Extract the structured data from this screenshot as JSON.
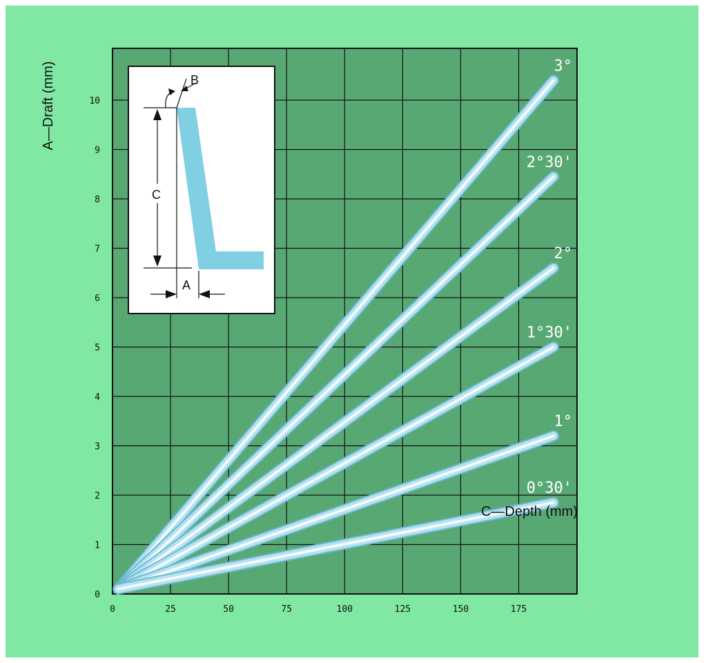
{
  "chart_data": {
    "type": "line",
    "xlabel": "C—Depth (mm)",
    "ylabel": "A—Draft (mm)",
    "xlim": [
      0,
      200
    ],
    "ylim": [
      0,
      11
    ],
    "x_ticks": [
      "0",
      "25",
      "50",
      "75",
      "100",
      "125",
      "150",
      "175"
    ],
    "y_ticks": [
      "0",
      "1",
      "2",
      "3",
      "4",
      "5",
      "6",
      "7",
      "8",
      "9",
      "10"
    ],
    "grid": true,
    "series": [
      {
        "name": "3°",
        "x": [
          2.5,
          190
        ],
        "y": [
          0.1,
          10.4
        ]
      },
      {
        "name": "2°30'",
        "x": [
          2.5,
          190
        ],
        "y": [
          0.1,
          8.45
        ]
      },
      {
        "name": "2°",
        "x": [
          2.5,
          190
        ],
        "y": [
          0.1,
          6.6
        ]
      },
      {
        "name": "1°30'",
        "x": [
          2.5,
          190
        ],
        "y": [
          0.1,
          5.0
        ]
      },
      {
        "name": "1°",
        "x": [
          2.5,
          190
        ],
        "y": [
          0.1,
          3.2
        ]
      },
      {
        "name": "0°30'",
        "x": [
          2.5,
          190
        ],
        "y": [
          0.1,
          1.85
        ]
      }
    ],
    "inset_diagram": {
      "label_a": "A",
      "label_b": "B",
      "label_c": "C"
    },
    "colors": {
      "background": "#80e8a2",
      "plot_area": "#58a874",
      "grid": "#111111",
      "line": "#a8dcec",
      "part": "#80cfe2"
    }
  }
}
